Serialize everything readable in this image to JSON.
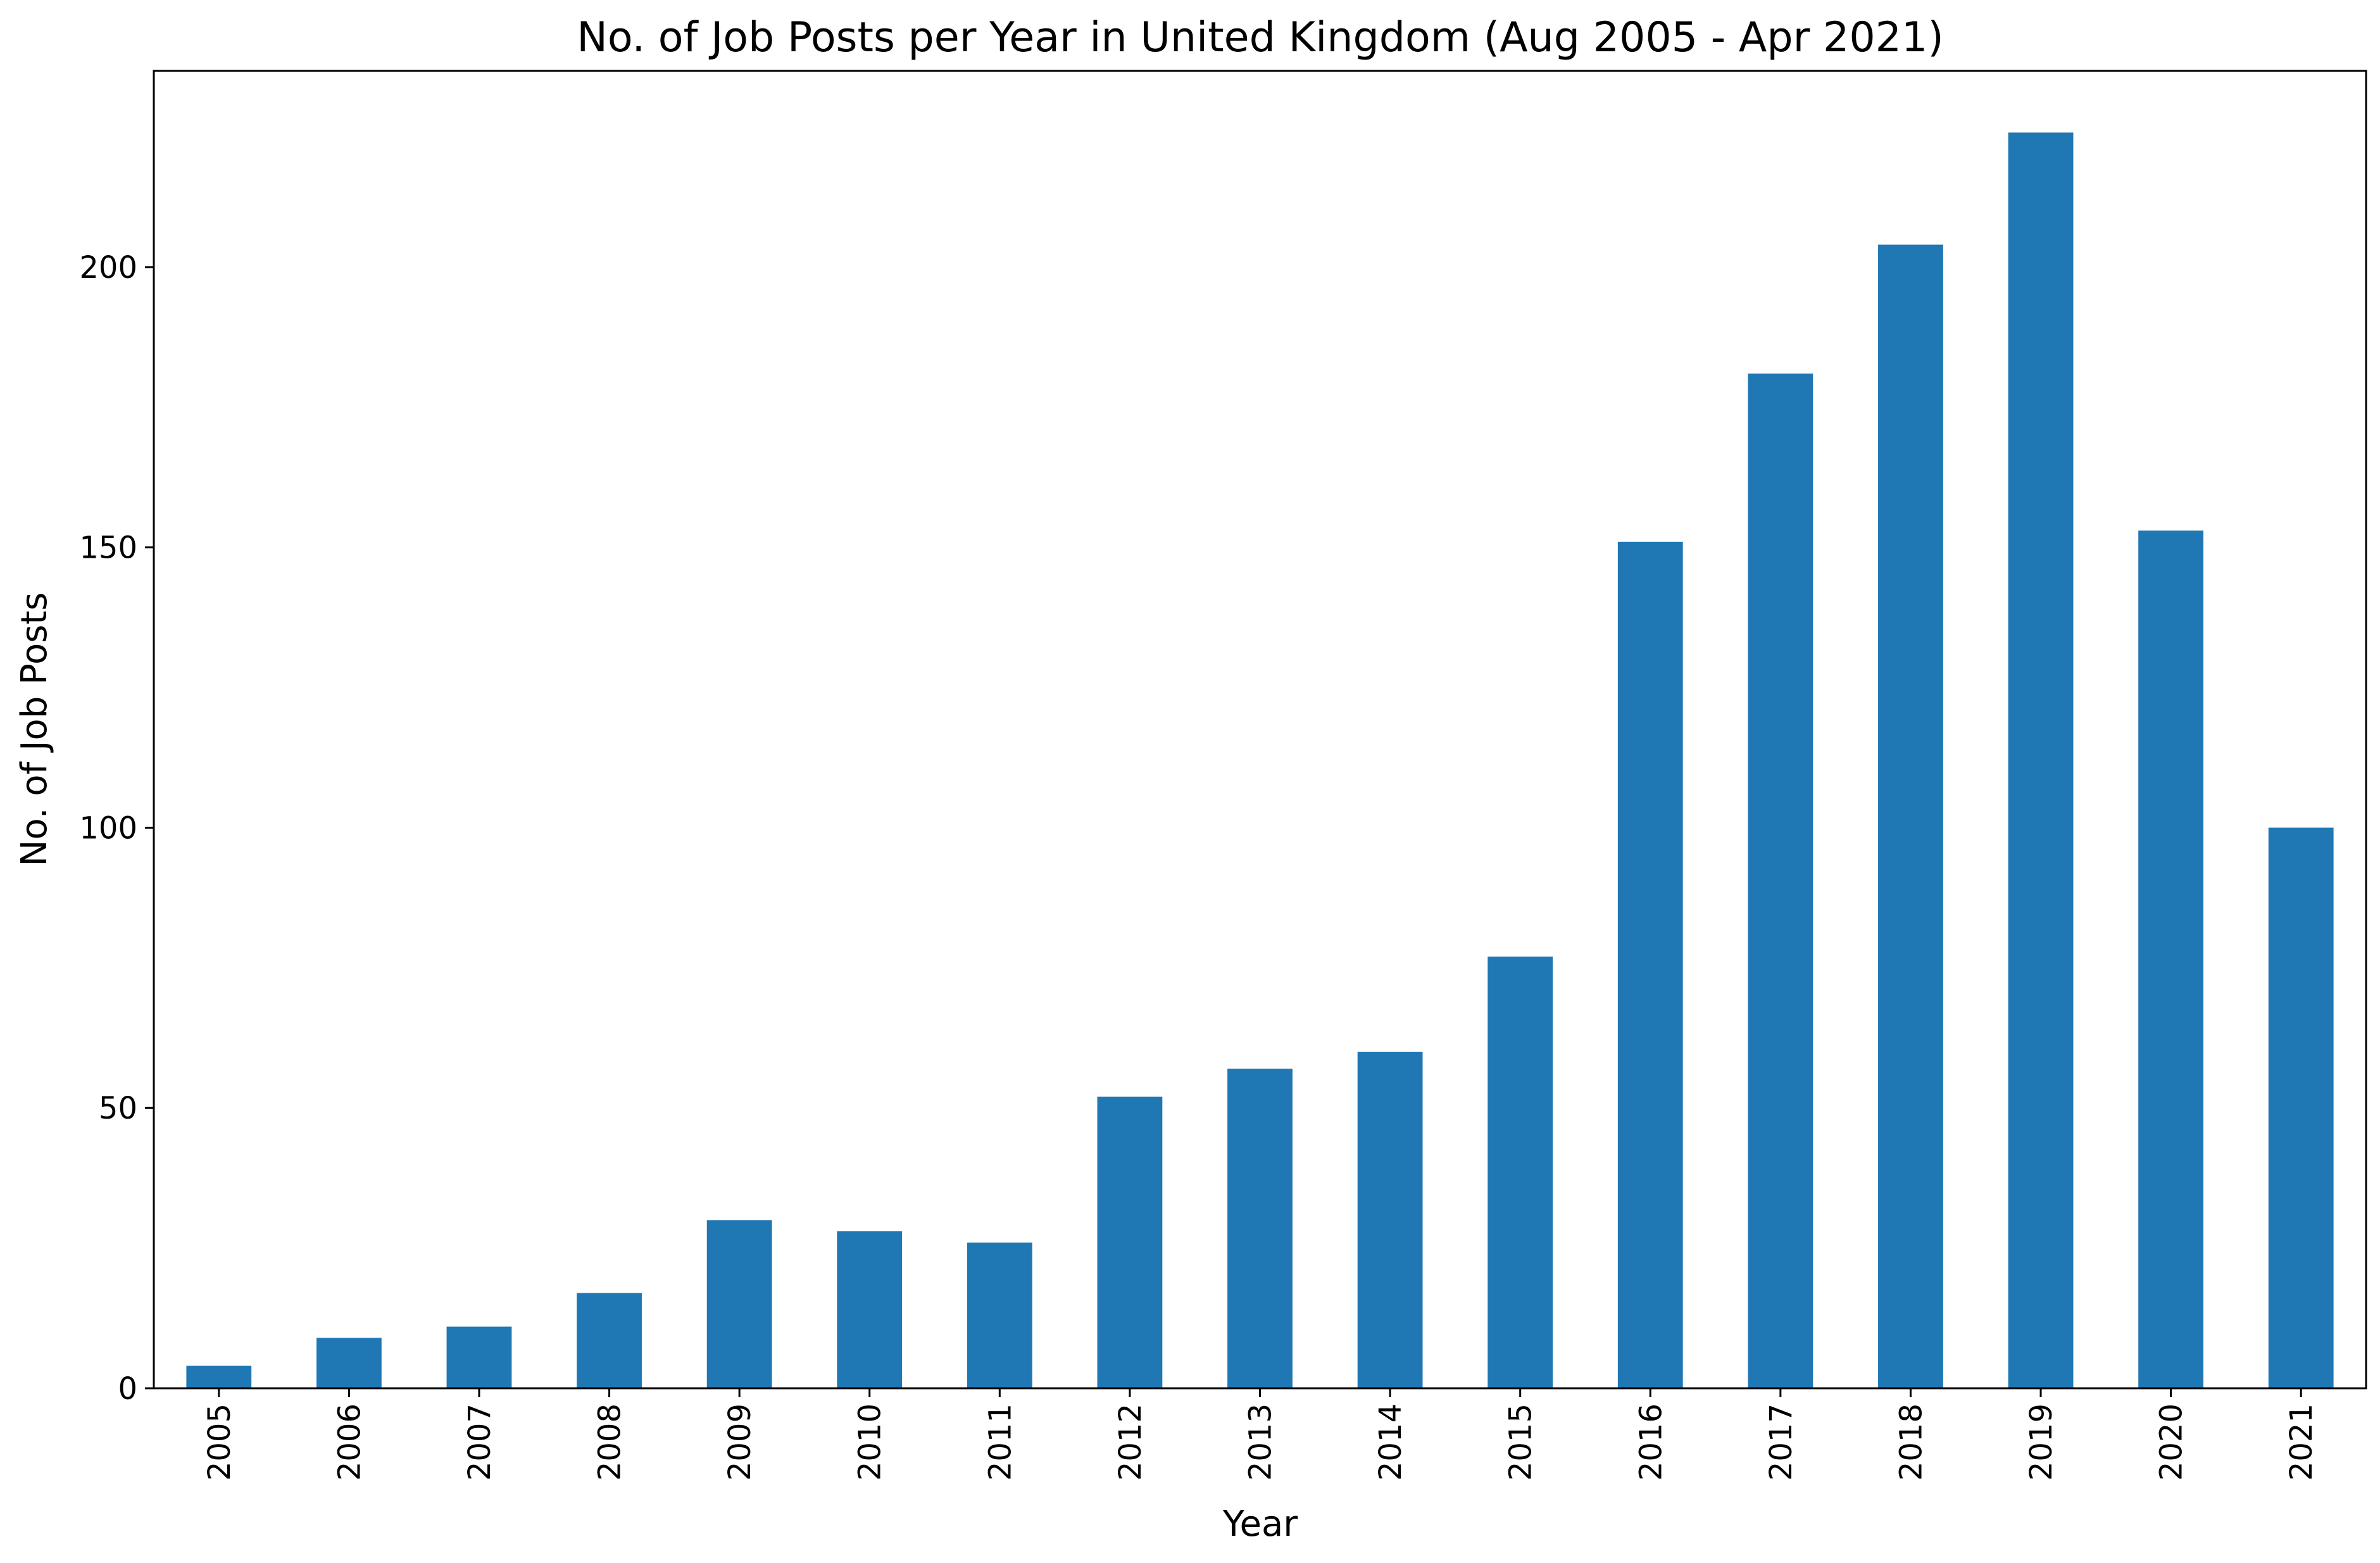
{
  "chart_data": {
    "type": "bar",
    "title": "No. of Job Posts per Year in United Kingdom (Aug 2005 - Apr 2021)",
    "xlabel": "Year",
    "ylabel": "No. of Job Posts",
    "categories": [
      "2005",
      "2006",
      "2007",
      "2008",
      "2009",
      "2010",
      "2011",
      "2012",
      "2013",
      "2014",
      "2015",
      "2016",
      "2017",
      "2018",
      "2019",
      "2020",
      "2021"
    ],
    "values": [
      4,
      9,
      11,
      17,
      30,
      28,
      26,
      52,
      57,
      60,
      77,
      151,
      181,
      204,
      224,
      153,
      100
    ],
    "ylim": [
      0,
      235
    ],
    "yticks": [
      0,
      50,
      100,
      150,
      200
    ],
    "grid": false,
    "legend": "none",
    "tick_label_rotation": "vertical",
    "bar_color": "#1f77b4"
  }
}
